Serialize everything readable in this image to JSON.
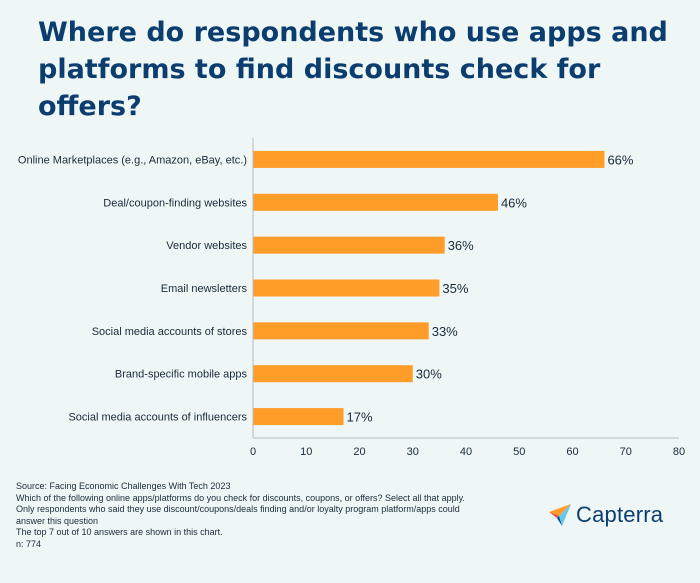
{
  "title": "Where do respondents who use apps and platforms to find discounts check for offers?",
  "chart_data": {
    "type": "bar",
    "orientation": "horizontal",
    "title": "Where do respondents who use apps and platforms to find discounts check for offers?",
    "categories": [
      "Online Marketplaces (e.g., Amazon, eBay, etc.)",
      "Deal/coupon-finding websites",
      "Vendor websites",
      "Email newsletters",
      "Social media accounts of stores",
      "Brand-specific mobile apps",
      "Social media accounts of influencers"
    ],
    "values": [
      66,
      46,
      36,
      35,
      33,
      30,
      17
    ],
    "value_labels": [
      "66%",
      "46%",
      "36%",
      "35%",
      "33%",
      "30%",
      "17%"
    ],
    "xlim": [
      0,
      80
    ],
    "xticks": [
      0,
      10,
      20,
      30,
      40,
      50,
      60,
      70,
      80
    ],
    "xlabel": "",
    "ylabel": "",
    "bar_color": "#ff9d28"
  },
  "footer": {
    "source": "Source: Facing Economic Challenges With Tech 2023",
    "question": "Which of the following online apps/platforms do you check for discounts, coupons, or offers? Select all that apply.",
    "note1": "Only respondents who said they use discount/coupons/deals finding and/or loyalty program platform/apps could",
    "note2": "answer this question",
    "note3": "The top 7 out of 10 answers are shown in this chart.",
    "n": "n:  774"
  },
  "logo": {
    "text": "Capterra",
    "icon": "capterra-arrow-icon",
    "colors": [
      "#ff9d28",
      "#68c5ed",
      "#044d80",
      "#e54747"
    ]
  },
  "colors": {
    "background": "#eef6f6",
    "title": "#0b3e6f",
    "axis": "#b5bcc2",
    "text": "#1b2a3a"
  }
}
